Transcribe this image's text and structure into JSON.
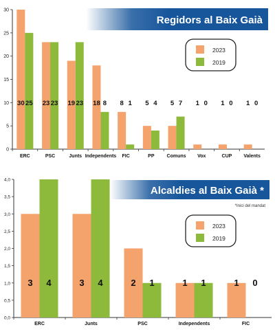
{
  "chart_data": [
    {
      "type": "bar",
      "title": "Regidors al Baix Gaià",
      "categories": [
        "ERC",
        "PSC",
        "Junts",
        "Independents",
        "FIC",
        "PP",
        "Comuns",
        "Vox",
        "CUP",
        "Valents"
      ],
      "series": [
        {
          "name": "2023",
          "values": [
            30,
            23,
            19,
            18,
            8,
            5,
            5,
            1,
            1,
            1
          ]
        },
        {
          "name": "2019",
          "values": [
            25,
            23,
            23,
            8,
            1,
            4,
            7,
            0,
            0,
            0
          ]
        }
      ],
      "ylim": [
        0,
        30
      ],
      "yticks": [
        "0",
        "5",
        "10",
        "15",
        "20",
        "25",
        "30"
      ],
      "xlabel": "",
      "ylabel": "",
      "grid": false,
      "legend": "top-right",
      "legend_labels": [
        "2023",
        "2019"
      ]
    },
    {
      "type": "bar",
      "title": "Alcaldies al Baix Gaià *",
      "note": "*Inici del mandat",
      "categories": [
        "ERC",
        "Junts",
        "PSC",
        "Independents",
        "FIC"
      ],
      "series": [
        {
          "name": "2023",
          "values": [
            3,
            3,
            2,
            1,
            1
          ]
        },
        {
          "name": "2019",
          "values": [
            4,
            4,
            1,
            1,
            0
          ]
        }
      ],
      "ylim": [
        0,
        4
      ],
      "yticks": [
        "0,0",
        "0,5",
        "1,0",
        "1,5",
        "2,0",
        "2,5",
        "3,0",
        "3,5",
        "4,0"
      ],
      "xlabel": "",
      "ylabel": "",
      "grid": false,
      "legend": "top-right",
      "legend_labels": [
        "2023",
        "2019"
      ]
    }
  ],
  "colors": {
    "s2023": "#F5A36C",
    "s2019": "#8DBA3A",
    "title_bg": "#17569B",
    "title_text": "#FFFFFF",
    "axis": "#333333"
  }
}
